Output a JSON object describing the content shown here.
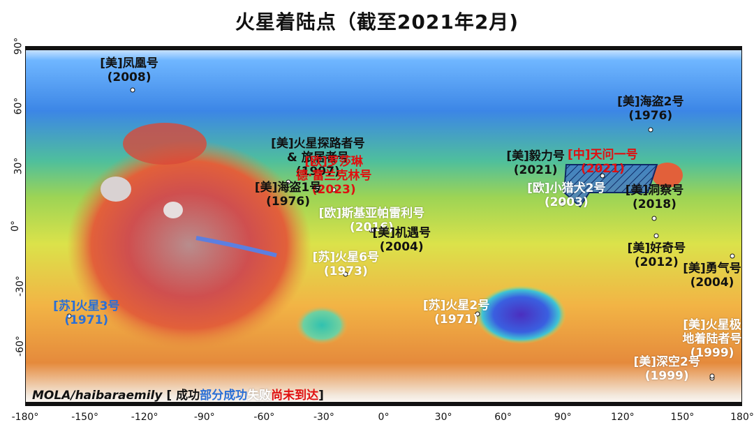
{
  "title": "火星着陆点（截至2021年2月)",
  "axes": {
    "x_ticks": [
      "-180°",
      "-150°",
      "-120°",
      "-90°",
      "-60°",
      "-30°",
      "0°",
      "30°",
      "60°",
      "90°",
      "120°",
      "150°",
      "180°"
    ],
    "y_ticks": [
      "90°",
      "60°",
      "30°",
      "0°",
      "-30°",
      "-60°"
    ]
  },
  "legend": {
    "source": "MOLA/haibaraemily",
    "open": "[",
    "success": "成功",
    "partial": "部分成功",
    "fail": "失败",
    "pending": "尚未到达",
    "close": "]"
  },
  "colors": {
    "success": "#111111",
    "partial": "#2a6fd6",
    "fail": "#ffffff",
    "pending": "#e01010",
    "region": "#1a3a8a"
  },
  "sites": [
    {
      "id": "phoenix",
      "line1": "[美]凤凰号",
      "line2": "(2008)",
      "status": "success",
      "lon": -126,
      "lat": 68
    },
    {
      "id": "viking2",
      "line1": "[美]海盗2号",
      "line2": "(1976)",
      "status": "success",
      "lon": 134,
      "lat": 48
    },
    {
      "id": "pathfinder",
      "line1": "[美]火星探路者号",
      "line2": "& 旅居者号",
      "line3": "(1997)",
      "status": "success",
      "lon": -33,
      "lat": 19
    },
    {
      "id": "rosalind",
      "line1": "[欧]罗莎琳",
      "line2": "德·富兰克林号",
      "line3": "(2023)",
      "status": "pending",
      "lon": -25,
      "lat": 18
    },
    {
      "id": "viking1",
      "line1": "[美]海盗1号",
      "line2": "(1976)",
      "status": "success",
      "lon": -48,
      "lat": 22
    },
    {
      "id": "perseverance",
      "line1": "[美]毅力号",
      "line2": "(2021)",
      "status": "success",
      "lon": 77,
      "lat": 18
    },
    {
      "id": "tianwen1",
      "line1": "[中]天问一号",
      "line2": "(2021)",
      "status": "pending",
      "lon": 110,
      "lat": 25
    },
    {
      "id": "insight",
      "line1": "[美]洞察号",
      "line2": "(2018)",
      "status": "success",
      "lon": 136,
      "lat": 4
    },
    {
      "id": "schiaparelli",
      "line1": "[欧]斯基亚帕雷利号",
      "line2": "(2016)",
      "status": "fail",
      "lon": -6,
      "lat": -2
    },
    {
      "id": "opportunity",
      "line1": "[美]机遇号",
      "line2": "(2004)",
      "status": "success",
      "lon": -5,
      "lat": -2
    },
    {
      "id": "beagle2",
      "line1": "[欧]小猎犬2号",
      "line2": "(2003)",
      "status": "fail",
      "lon": 90,
      "lat": 11
    },
    {
      "id": "curiosity",
      "line1": "[美]好奇号",
      "line2": "(2012)",
      "status": "success",
      "lon": 137,
      "lat": -5
    },
    {
      "id": "spirit",
      "line1": "[美]勇气号",
      "line2": "(2004)",
      "status": "success",
      "lon": 175,
      "lat": -15
    },
    {
      "id": "mars6",
      "line1": "[苏]火星6号",
      "line2": "(1973)",
      "status": "fail",
      "lon": -19,
      "lat": -24
    },
    {
      "id": "mars3",
      "line1": "[苏]火星3号",
      "line2": "(1971)",
      "status": "partial",
      "lon": -158,
      "lat": -45
    },
    {
      "id": "mars2",
      "line1": "[苏]火星2号",
      "line2": "(1971)",
      "status": "fail",
      "lon": 47,
      "lat": -44
    },
    {
      "id": "mpl",
      "line1": "[美]火星极",
      "line2": "地着陆者号",
      "line3": "(1999)",
      "status": "fail",
      "lon": 165,
      "lat": -76
    },
    {
      "id": "ds2",
      "line1": "[美]深空2号",
      "line2": "(1999)",
      "status": "fail",
      "lon": 165,
      "lat": -75
    }
  ]
}
